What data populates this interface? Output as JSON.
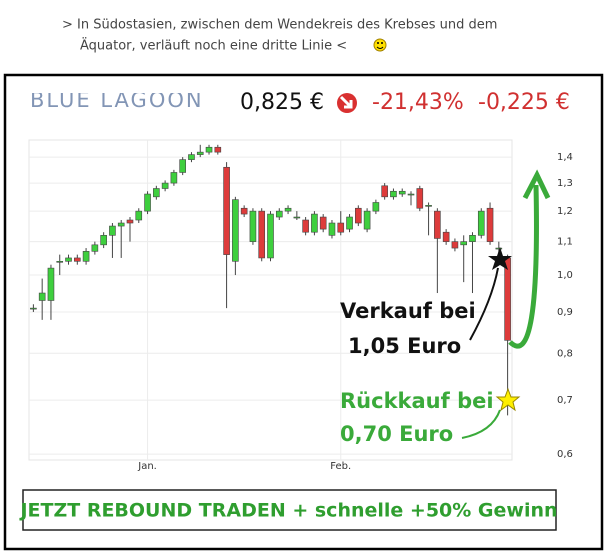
{
  "quote": [
    "> In Südostasien, zwischen dem Wendekreis des Krebses und dem",
    "Äquator, verläuft noch eine dritte Linie <"
  ],
  "chart_data": {
    "type": "candlestick",
    "header": {
      "logo": "BLUE LAGOON",
      "price": "0,825 €",
      "change_pct": "-21,43%",
      "change_abs": "-0,225 €"
    },
    "categories": [
      null,
      null,
      null,
      null,
      null,
      null,
      null,
      null,
      null,
      null,
      null,
      null,
      null,
      "Jan.",
      null,
      null,
      null,
      null,
      null,
      null,
      null,
      null,
      null,
      null,
      null,
      null,
      null,
      null,
      null,
      null,
      null,
      null,
      null,
      null,
      null,
      "Feb.",
      null,
      null,
      null,
      null,
      null,
      null,
      null,
      null,
      null,
      null,
      null,
      null,
      null,
      null,
      null,
      null,
      null,
      null,
      null
    ],
    "open": [
      0.91,
      0.93,
      0.93,
      1.04,
      1.04,
      1.05,
      1.04,
      1.07,
      1.09,
      1.12,
      1.15,
      1.17,
      1.17,
      1.2,
      1.25,
      1.28,
      1.3,
      1.34,
      1.39,
      1.41,
      1.42,
      1.44,
      1.36,
      1.04,
      1.21,
      1.1,
      1.2,
      1.05,
      1.18,
      1.2,
      1.18,
      1.17,
      1.13,
      1.18,
      1.12,
      1.16,
      1.14,
      1.21,
      1.14,
      1.2,
      1.29,
      1.25,
      1.26,
      1.26,
      1.28,
      1.22,
      1.2,
      1.13,
      1.1,
      1.09,
      1.1,
      1.12,
      1.21,
      1.08,
      1.05
    ],
    "high": [
      0.92,
      0.99,
      1.03,
      1.06,
      1.06,
      1.06,
      1.08,
      1.1,
      1.13,
      1.16,
      1.17,
      1.18,
      1.21,
      1.27,
      1.29,
      1.31,
      1.35,
      1.4,
      1.42,
      1.45,
      1.45,
      1.45,
      1.38,
      1.25,
      1.22,
      1.21,
      1.21,
      1.2,
      1.21,
      1.22,
      1.2,
      1.18,
      1.2,
      1.19,
      1.17,
      1.2,
      1.19,
      1.22,
      1.21,
      1.24,
      1.3,
      1.28,
      1.28,
      1.27,
      1.29,
      1.23,
      1.21,
      1.14,
      1.11,
      1.12,
      1.13,
      1.21,
      1.23,
      1.1,
      1.06
    ],
    "low": [
      0.9,
      0.88,
      0.88,
      1.0,
      1.03,
      1.03,
      1.03,
      1.06,
      1.08,
      1.05,
      1.05,
      1.1,
      1.16,
      1.19,
      1.24,
      1.27,
      1.29,
      1.33,
      1.38,
      1.4,
      1.41,
      1.41,
      0.91,
      1.0,
      1.18,
      1.09,
      1.04,
      1.04,
      1.17,
      1.19,
      1.17,
      1.12,
      1.12,
      1.13,
      1.11,
      1.12,
      1.13,
      1.15,
      1.13,
      1.19,
      1.24,
      1.24,
      1.25,
      1.22,
      1.2,
      1.12,
      0.95,
      1.09,
      1.07,
      0.98,
      0.95,
      1.11,
      1.09,
      1.06,
      0.67
    ],
    "close": [
      0.91,
      0.95,
      1.02,
      1.04,
      1.05,
      1.04,
      1.07,
      1.09,
      1.12,
      1.15,
      1.16,
      1.16,
      1.2,
      1.26,
      1.28,
      1.3,
      1.34,
      1.39,
      1.41,
      1.42,
      1.44,
      1.42,
      1.06,
      1.24,
      1.19,
      1.2,
      1.05,
      1.19,
      1.2,
      1.21,
      1.18,
      1.13,
      1.19,
      1.14,
      1.16,
      1.13,
      1.18,
      1.16,
      1.2,
      1.23,
      1.25,
      1.27,
      1.27,
      1.26,
      1.21,
      1.22,
      1.11,
      1.1,
      1.08,
      1.1,
      1.12,
      1.2,
      1.1,
      1.08,
      0.83
    ],
    "up_color": "#3ecf3e",
    "down_color": "#dd3b3b",
    "ylim": [
      0.59,
      1.47
    ],
    "log_y": true,
    "grid": true,
    "yticks": [
      {
        "value": 0.6,
        "label": "0,6"
      },
      {
        "value": 0.7,
        "label": "0,7"
      },
      {
        "value": 0.8,
        "label": "0,8"
      },
      {
        "value": 0.9,
        "label": "0,9"
      },
      {
        "value": 1.0,
        "label": "1,0"
      },
      {
        "value": 1.1,
        "label": "1,1"
      },
      {
        "value": 1.2,
        "label": "1,2"
      },
      {
        "value": 1.3,
        "label": "1,3"
      },
      {
        "value": 1.4,
        "label": "1,4"
      }
    ],
    "annotations": [
      "Verkauf bei",
      "1,05 Euro",
      "Rückkauf bei",
      "0,70 Euro"
    ],
    "banner": "JETZT REBOUND TRADEN + schnelle +50% Gewinn"
  }
}
